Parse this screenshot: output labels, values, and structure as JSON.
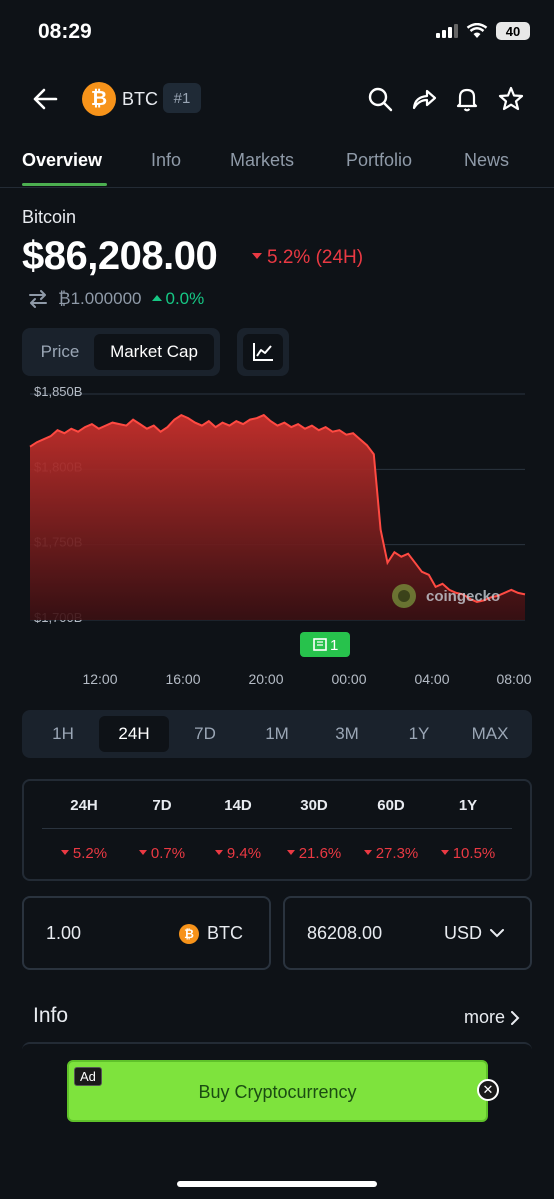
{
  "status": {
    "time": "08:29",
    "battery": "40"
  },
  "header": {
    "symbol": "BTC",
    "rank": "#1",
    "logo_letter": "₿"
  },
  "tabs": [
    "Overview",
    "Info",
    "Markets",
    "Portfolio",
    "News"
  ],
  "coin": {
    "name": "Bitcoin",
    "price": "$86,208.00",
    "change_24h": "5.2% (24H)",
    "btc_value": "₿1.000000",
    "btc_change": "0.0%"
  },
  "chart_toggle": [
    "Price",
    "Market Cap"
  ],
  "chart_data": {
    "type": "area",
    "x_ticks": [
      "12:00",
      "16:00",
      "20:00",
      "00:00",
      "04:00",
      "08:00"
    ],
    "y_ticks": [
      "$1,850B",
      "$1,800B",
      "$1,750B",
      "$1,700B"
    ],
    "ylim": [
      1700,
      1850
    ],
    "y": [
      1815,
      1818,
      1820,
      1822,
      1826,
      1824,
      1827,
      1825,
      1828,
      1830,
      1827,
      1829,
      1831,
      1830,
      1829,
      1833,
      1830,
      1827,
      1829,
      1825,
      1828,
      1833,
      1836,
      1834,
      1831,
      1829,
      1832,
      1828,
      1831,
      1829,
      1832,
      1830,
      1833,
      1834,
      1836,
      1832,
      1829,
      1831,
      1828,
      1830,
      1827,
      1829,
      1826,
      1828,
      1825,
      1826,
      1823,
      1824,
      1820,
      1816,
      1810,
      1760,
      1738,
      1745,
      1742,
      1744,
      1738,
      1732,
      1730,
      1722,
      1724,
      1720,
      1718,
      1717,
      1714,
      1712,
      1713,
      1715,
      1716,
      1718,
      1720,
      1718,
      1717
    ],
    "watermark": "coingecko",
    "news_badge": "1"
  },
  "ranges": [
    "1H",
    "24H",
    "7D",
    "1M",
    "3M",
    "1Y",
    "MAX"
  ],
  "performance": {
    "headers": [
      "24H",
      "7D",
      "14D",
      "30D",
      "60D",
      "1Y"
    ],
    "values": [
      "5.2%",
      "0.7%",
      "9.4%",
      "21.6%",
      "27.3%",
      "10.5%"
    ]
  },
  "converter": {
    "amount": "1.00",
    "amount_unit": "BTC",
    "fiat_value": "86208.00",
    "fiat_unit": "USD"
  },
  "info": {
    "title": "Info",
    "more": "more"
  },
  "ad": {
    "label": "Ad",
    "text": "Buy Cryptocurrency"
  },
  "colors": {
    "accent": "#4caf50",
    "down": "#ea3943",
    "up": "#16c784",
    "btc": "#f7931a"
  }
}
